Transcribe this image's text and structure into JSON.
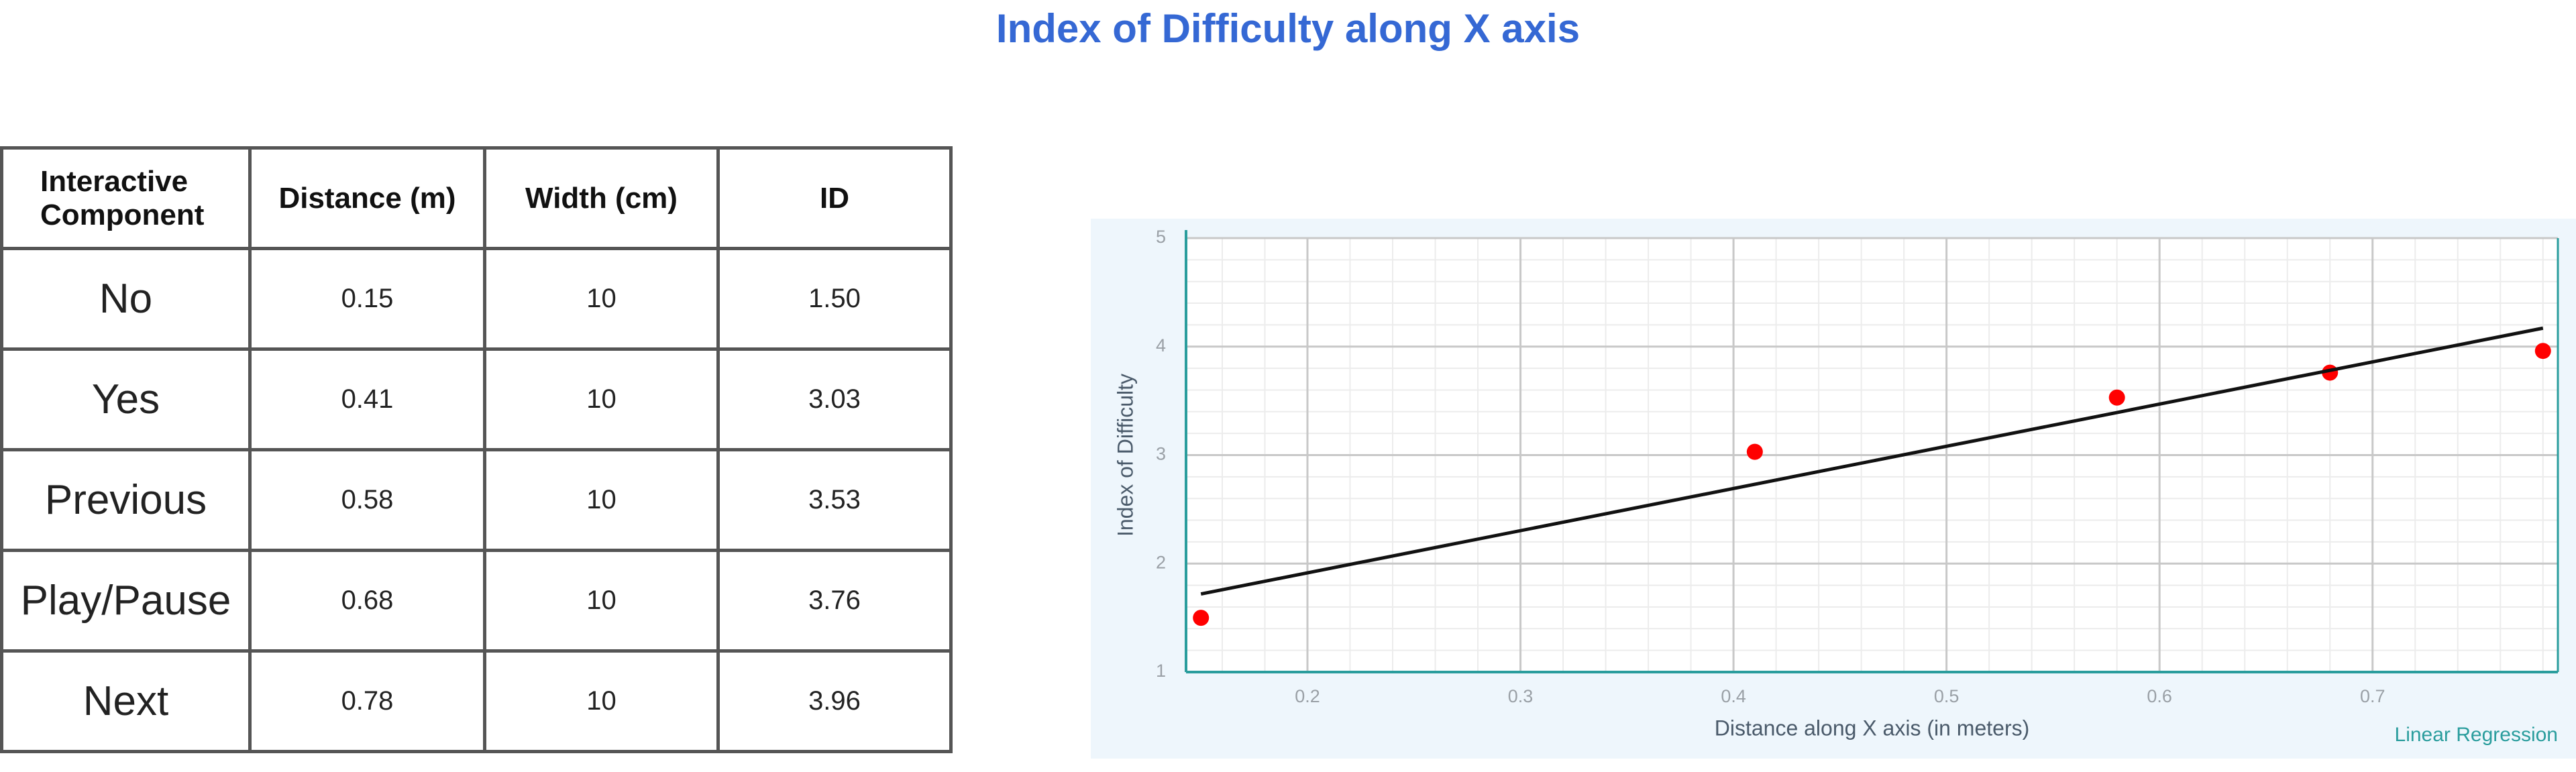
{
  "title": "Index of Difficulty along X axis",
  "table": {
    "header": [
      "Interactive Component",
      "Distance (m)",
      "Width (cm)",
      "ID"
    ],
    "rows": [
      [
        "No",
        "0.15",
        "10",
        "1.50"
      ],
      [
        "Yes",
        "0.41",
        "10",
        "3.03"
      ],
      [
        "Previous",
        "0.58",
        "10",
        "3.53"
      ],
      [
        "Play/Pause",
        "0.68",
        "10",
        "3.76"
      ],
      [
        "Next",
        "0.78",
        "10",
        "3.96"
      ]
    ]
  },
  "chart_data": {
    "type": "scatter",
    "x_label": "Distance along X axis (in meters)",
    "y_label": "Index of Difficulty",
    "series": [
      {
        "name": "Index of Difficulty",
        "color": "#ff0000",
        "x": [
          0.15,
          0.41,
          0.58,
          0.68,
          0.78
        ],
        "values": [
          1.5,
          3.03,
          3.53,
          3.76,
          3.96
        ]
      },
      {
        "name": "Linear Regression",
        "color": "#111111",
        "x": [
          0.15,
          0.78
        ],
        "values": [
          1.72,
          4.17
        ],
        "line": true
      }
    ],
    "xlim": [
      0.143,
      0.787
    ],
    "ylim": [
      1,
      5
    ],
    "xticks": [
      0.2,
      0.3,
      0.4,
      0.5,
      0.6,
      0.7
    ],
    "yticks": [
      1,
      2,
      3,
      4,
      5
    ],
    "grid": true
  }
}
